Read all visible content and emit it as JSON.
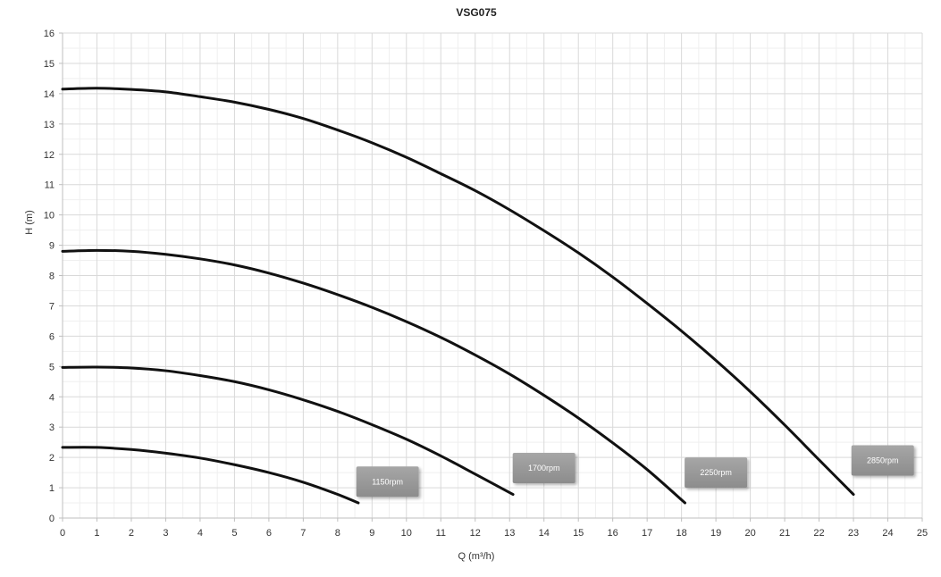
{
  "chart_data": {
    "type": "line",
    "title": "VSG075",
    "xlabel": "Q (m³/h)",
    "ylabel": "H (m)",
    "xlim": [
      0,
      25
    ],
    "ylim": [
      0,
      16
    ],
    "x_ticks": [
      0,
      1,
      2,
      3,
      4,
      5,
      6,
      7,
      8,
      9,
      10,
      11,
      12,
      13,
      14,
      15,
      16,
      17,
      18,
      19,
      20,
      21,
      22,
      23,
      24,
      25
    ],
    "y_ticks": [
      0,
      1,
      2,
      3,
      4,
      5,
      6,
      7,
      8,
      9,
      10,
      11,
      12,
      13,
      14,
      15,
      16
    ],
    "grid": true,
    "minor_grid": true,
    "legend": "none",
    "line_color": "#111111",
    "callout_color": "#8c8c8c",
    "series": [
      {
        "name": "1150rpm",
        "x": [
          0,
          1,
          2,
          3,
          4,
          5,
          6,
          7,
          8,
          8.6
        ],
        "y": [
          2.33,
          2.33,
          2.26,
          2.14,
          1.98,
          1.76,
          1.5,
          1.18,
          0.78,
          0.5
        ]
      },
      {
        "name": "1700rpm",
        "x": [
          0,
          1,
          2,
          3,
          4,
          5,
          6,
          7,
          8,
          9,
          10,
          11,
          12,
          13.1
        ],
        "y": [
          4.97,
          4.98,
          4.95,
          4.86,
          4.7,
          4.5,
          4.23,
          3.9,
          3.52,
          3.08,
          2.6,
          2.05,
          1.45,
          0.78
        ]
      },
      {
        "name": "2250rpm",
        "x": [
          0,
          1,
          2,
          3,
          4,
          5,
          6,
          7,
          8,
          9,
          10,
          11,
          12,
          13,
          14,
          15,
          16,
          17,
          18.1
        ],
        "y": [
          8.8,
          8.83,
          8.8,
          8.7,
          8.55,
          8.35,
          8.08,
          7.75,
          7.37,
          6.95,
          6.48,
          5.96,
          5.38,
          4.75,
          4.05,
          3.3,
          2.48,
          1.6,
          0.5
        ]
      },
      {
        "name": "2850rpm",
        "x": [
          0,
          1,
          2,
          3,
          4,
          5,
          6,
          7,
          8,
          9,
          10,
          11,
          12,
          13,
          14,
          15,
          16,
          17,
          18,
          19,
          20,
          21,
          22,
          23
        ],
        "y": [
          14.15,
          14.18,
          14.14,
          14.06,
          13.9,
          13.72,
          13.48,
          13.18,
          12.8,
          12.38,
          11.9,
          11.36,
          10.8,
          10.17,
          9.48,
          8.75,
          7.95,
          7.08,
          6.17,
          5.2,
          4.17,
          3.07,
          1.92,
          0.78
        ]
      }
    ],
    "annotations": [
      {
        "text": "1150rpm",
        "x": 9.45,
        "y": 1.2
      },
      {
        "text": "1700rpm",
        "x": 14.0,
        "y": 1.65
      },
      {
        "text": "2250rpm",
        "x": 19.0,
        "y": 1.5
      },
      {
        "text": "2850rpm",
        "x": 23.85,
        "y": 1.9
      }
    ]
  }
}
